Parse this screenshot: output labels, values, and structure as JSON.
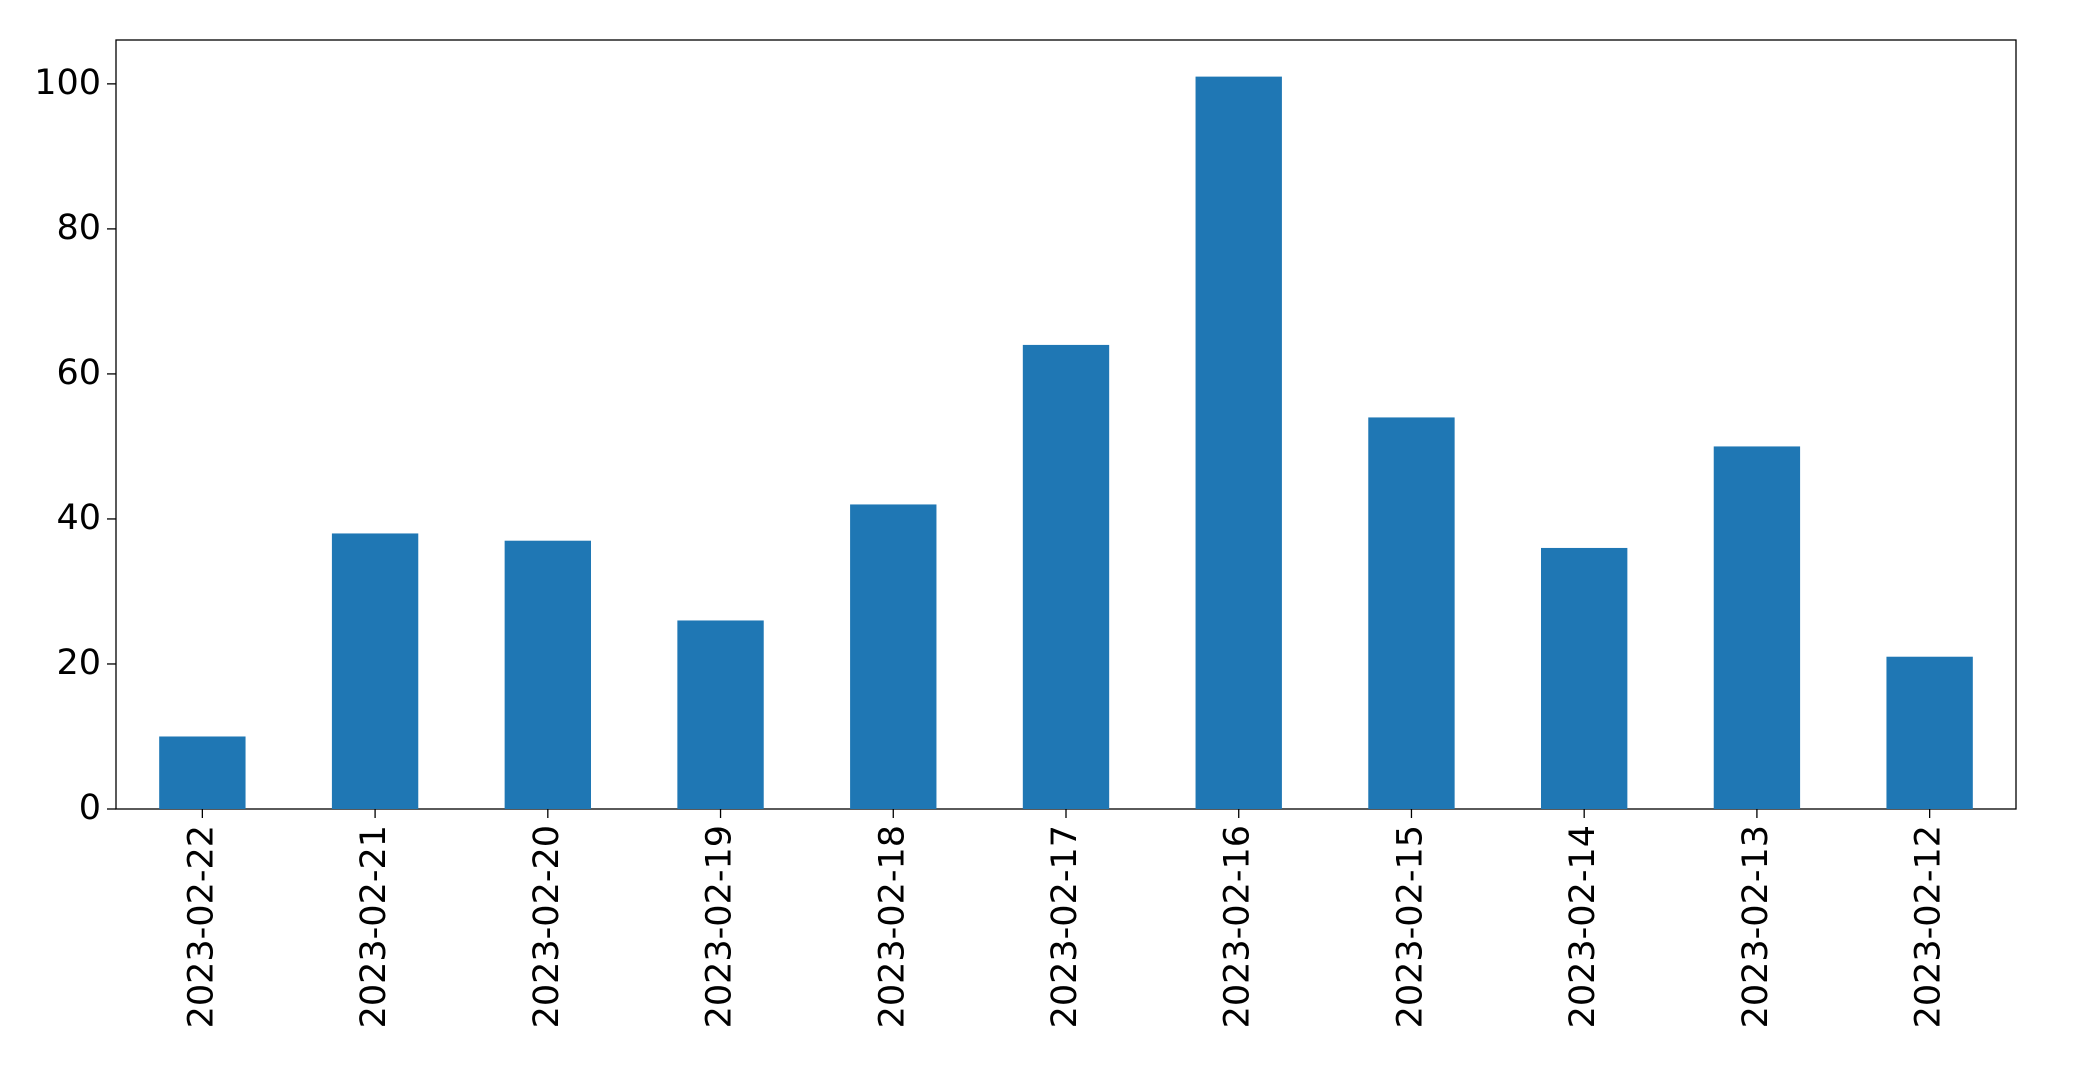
{
  "chart_data": {
    "type": "bar",
    "categories": [
      "2023-02-22",
      "2023-02-21",
      "2023-02-20",
      "2023-02-19",
      "2023-02-18",
      "2023-02-17",
      "2023-02-16",
      "2023-02-15",
      "2023-02-14",
      "2023-02-13",
      "2023-02-12"
    ],
    "values": [
      10,
      38,
      37,
      26,
      42,
      64,
      101,
      54,
      36,
      50,
      21
    ],
    "color": "#1f77b4",
    "ylim": [
      0,
      106.05
    ],
    "yticks": [
      0,
      20,
      40,
      60,
      80,
      100
    ],
    "grid": false
  }
}
